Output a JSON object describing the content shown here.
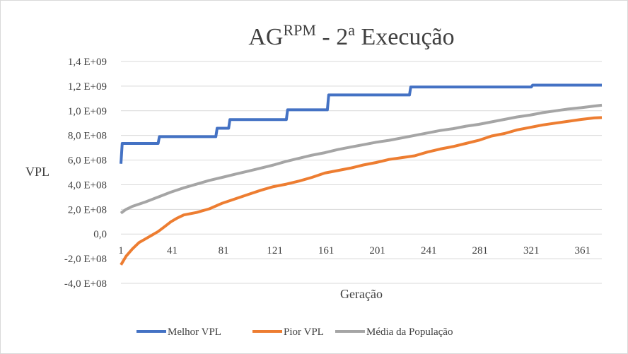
{
  "chart_data": {
    "type": "line",
    "title": {
      "main": "AG",
      "superscript": "RPM",
      "rest": " - 2",
      "ordinal": "a",
      "tail": " Execução"
    },
    "xlabel": "Geração",
    "ylabel": "VPL",
    "xlim": [
      1,
      376
    ],
    "ylim": [
      -400000000,
      1400000000
    ],
    "x_ticks": [
      1,
      41,
      81,
      121,
      161,
      201,
      241,
      281,
      321,
      361
    ],
    "y_ticks": [
      {
        "value": 1400000000,
        "label": "1,4 E+09"
      },
      {
        "value": 1200000000,
        "label": "1,2 E+09"
      },
      {
        "value": 1000000000,
        "label": "1,0 E+09"
      },
      {
        "value": 800000000,
        "label": "8,0 E+08"
      },
      {
        "value": 600000000,
        "label": "6,0 E+08"
      },
      {
        "value": 400000000,
        "label": "4,0 E+08"
      },
      {
        "value": 200000000,
        "label": "2,0 E+08"
      },
      {
        "value": 0,
        "label": "0,0"
      },
      {
        "value": -200000000,
        "label": "-2,0 E+08"
      },
      {
        "value": -400000000,
        "label": "-4,0 E+08"
      }
    ],
    "grid": "horizontal",
    "legend_position": "bottom",
    "series": [
      {
        "name": "Melhor VPL",
        "color": "#4472c4",
        "step": true,
        "points": [
          [
            1,
            570000000
          ],
          [
            2,
            735000000
          ],
          [
            30,
            735000000
          ],
          [
            31,
            790000000
          ],
          [
            75,
            790000000
          ],
          [
            76,
            858000000
          ],
          [
            85,
            858000000
          ],
          [
            86,
            928000000
          ],
          [
            130,
            928000000
          ],
          [
            131,
            1008000000
          ],
          [
            162,
            1008000000
          ],
          [
            163,
            1128000000
          ],
          [
            226,
            1128000000
          ],
          [
            227,
            1193000000
          ],
          [
            321,
            1193000000
          ],
          [
            322,
            1208000000
          ],
          [
            376,
            1208000000
          ]
        ]
      },
      {
        "name": "Pior VPL",
        "color": "#ed7d31",
        "step": false,
        "points": [
          [
            1,
            -250000000
          ],
          [
            5,
            -180000000
          ],
          [
            10,
            -120000000
          ],
          [
            15,
            -70000000
          ],
          [
            20,
            -40000000
          ],
          [
            25,
            -10000000
          ],
          [
            30,
            20000000
          ],
          [
            35,
            60000000
          ],
          [
            40,
            100000000
          ],
          [
            45,
            130000000
          ],
          [
            50,
            155000000
          ],
          [
            60,
            175000000
          ],
          [
            70,
            205000000
          ],
          [
            80,
            250000000
          ],
          [
            90,
            285000000
          ],
          [
            100,
            320000000
          ],
          [
            110,
            355000000
          ],
          [
            120,
            385000000
          ],
          [
            130,
            405000000
          ],
          [
            140,
            430000000
          ],
          [
            150,
            460000000
          ],
          [
            160,
            495000000
          ],
          [
            170,
            515000000
          ],
          [
            180,
            535000000
          ],
          [
            190,
            560000000
          ],
          [
            200,
            580000000
          ],
          [
            210,
            605000000
          ],
          [
            220,
            620000000
          ],
          [
            230,
            635000000
          ],
          [
            240,
            665000000
          ],
          [
            250,
            690000000
          ],
          [
            260,
            710000000
          ],
          [
            270,
            735000000
          ],
          [
            280,
            760000000
          ],
          [
            290,
            795000000
          ],
          [
            300,
            815000000
          ],
          [
            310,
            845000000
          ],
          [
            320,
            865000000
          ],
          [
            330,
            885000000
          ],
          [
            340,
            900000000
          ],
          [
            350,
            915000000
          ],
          [
            360,
            930000000
          ],
          [
            370,
            942000000
          ],
          [
            376,
            945000000
          ]
        ]
      },
      {
        "name": "Média da População",
        "color": "#a5a5a5",
        "step": false,
        "points": [
          [
            1,
            170000000
          ],
          [
            5,
            200000000
          ],
          [
            10,
            225000000
          ],
          [
            20,
            260000000
          ],
          [
            30,
            300000000
          ],
          [
            40,
            340000000
          ],
          [
            50,
            375000000
          ],
          [
            60,
            405000000
          ],
          [
            70,
            435000000
          ],
          [
            80,
            460000000
          ],
          [
            90,
            485000000
          ],
          [
            100,
            510000000
          ],
          [
            110,
            535000000
          ],
          [
            120,
            560000000
          ],
          [
            130,
            590000000
          ],
          [
            140,
            615000000
          ],
          [
            150,
            640000000
          ],
          [
            160,
            660000000
          ],
          [
            170,
            685000000
          ],
          [
            180,
            705000000
          ],
          [
            190,
            725000000
          ],
          [
            200,
            745000000
          ],
          [
            210,
            760000000
          ],
          [
            220,
            780000000
          ],
          [
            230,
            800000000
          ],
          [
            240,
            820000000
          ],
          [
            250,
            840000000
          ],
          [
            260,
            855000000
          ],
          [
            270,
            875000000
          ],
          [
            280,
            890000000
          ],
          [
            290,
            910000000
          ],
          [
            300,
            930000000
          ],
          [
            310,
            950000000
          ],
          [
            320,
            965000000
          ],
          [
            330,
            985000000
          ],
          [
            340,
            1000000000
          ],
          [
            350,
            1015000000
          ],
          [
            360,
            1025000000
          ],
          [
            370,
            1038000000
          ],
          [
            376,
            1045000000
          ]
        ]
      }
    ]
  }
}
